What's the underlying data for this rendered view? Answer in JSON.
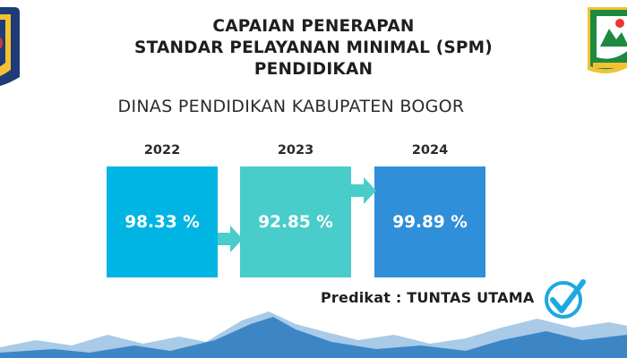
{
  "header": {
    "title_line1": "CAPAIAN PENERAPAN",
    "title_line2": "STANDAR PELAYANAN MINIMAL (SPM)",
    "title_line3": "PENDIDIKAN",
    "agency": "DINAS PENDIDIKAN KABUPATEN BOGOR"
  },
  "years": [
    {
      "year": "2022",
      "value": "98.33 %",
      "color": "#00B5E4"
    },
    {
      "year": "2023",
      "value": "92.85 %",
      "color": "#49CDCA"
    },
    {
      "year": "2024",
      "value": "99.89 %",
      "color": "#2F8FD8"
    }
  ],
  "predikat": "Predikat : TUNTAS UTAMA",
  "colors": {
    "check": "#1EA8E0",
    "mountain_dark": "#3D86C6",
    "mountain_light": "#A9CBE7"
  },
  "logos": {
    "left": "government-emblem-icon",
    "right": "kabupaten-bogor-emblem-icon"
  }
}
